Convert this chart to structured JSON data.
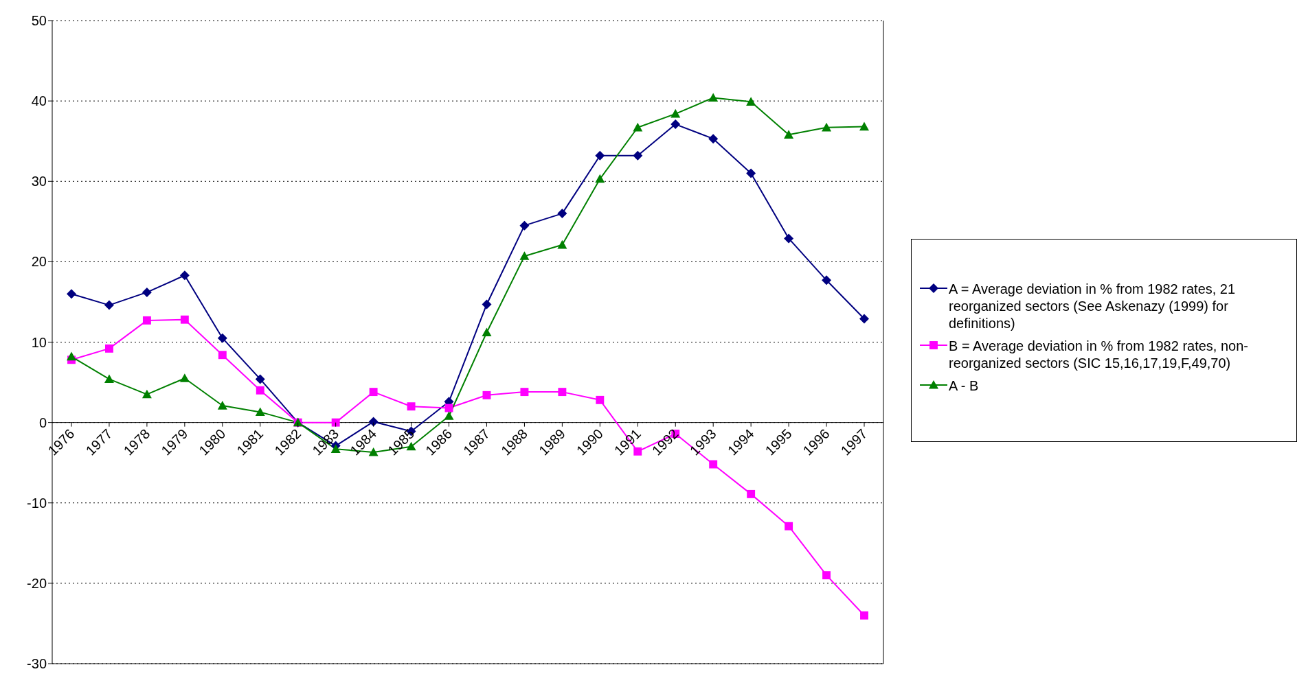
{
  "chart_data": {
    "type": "line",
    "categories": [
      "1976",
      "1977",
      "1978",
      "1979",
      "1980",
      "1981",
      "1982",
      "1983",
      "1984",
      "1985",
      "1986",
      "1987",
      "1988",
      "1989",
      "1990",
      "1991",
      "1992",
      "1993",
      "1994",
      "1995",
      "1996",
      "1997"
    ],
    "series": [
      {
        "name": "A = Average deviation in % from 1982 rates, 21 reorganized sectors (See Askenazy (1999) for definitions)",
        "color": "#000080",
        "marker": "diamond",
        "values": [
          16,
          14.6,
          16.2,
          18.3,
          10.5,
          5.4,
          0,
          -2.9,
          0.1,
          -1.1,
          2.6,
          14.7,
          24.5,
          26,
          33.2,
          33.2,
          37.1,
          35.3,
          31,
          22.9,
          17.7,
          12.9
        ]
      },
      {
        "name": "B = Average deviation in % from 1982 rates, non-reorganized sectors (SIC 15,16,17,19,F,49,70)",
        "color": "#ff00ff",
        "marker": "square",
        "values": [
          7.8,
          9.2,
          12.7,
          12.8,
          8.4,
          4,
          0,
          0,
          3.8,
          2,
          1.8,
          3.4,
          3.8,
          3.8,
          2.8,
          -3.6,
          -1.4,
          -5.2,
          -8.9,
          -12.9,
          -19,
          -24
        ]
      },
      {
        "name": "A - B",
        "color": "#008000",
        "marker": "triangle",
        "values": [
          8.2,
          5.4,
          3.5,
          5.5,
          2.1,
          1.3,
          0,
          -3.3,
          -3.7,
          -3,
          0.8,
          11.2,
          20.7,
          22.1,
          30.3,
          36.7,
          38.4,
          40.4,
          39.9,
          35.8,
          36.7,
          36.8
        ]
      }
    ],
    "ylim": [
      -30,
      50
    ],
    "yticks": [
      -30,
      -20,
      -10,
      0,
      10,
      20,
      30,
      40,
      50
    ],
    "grid": "y",
    "legend": "right",
    "line_style": "solid"
  }
}
